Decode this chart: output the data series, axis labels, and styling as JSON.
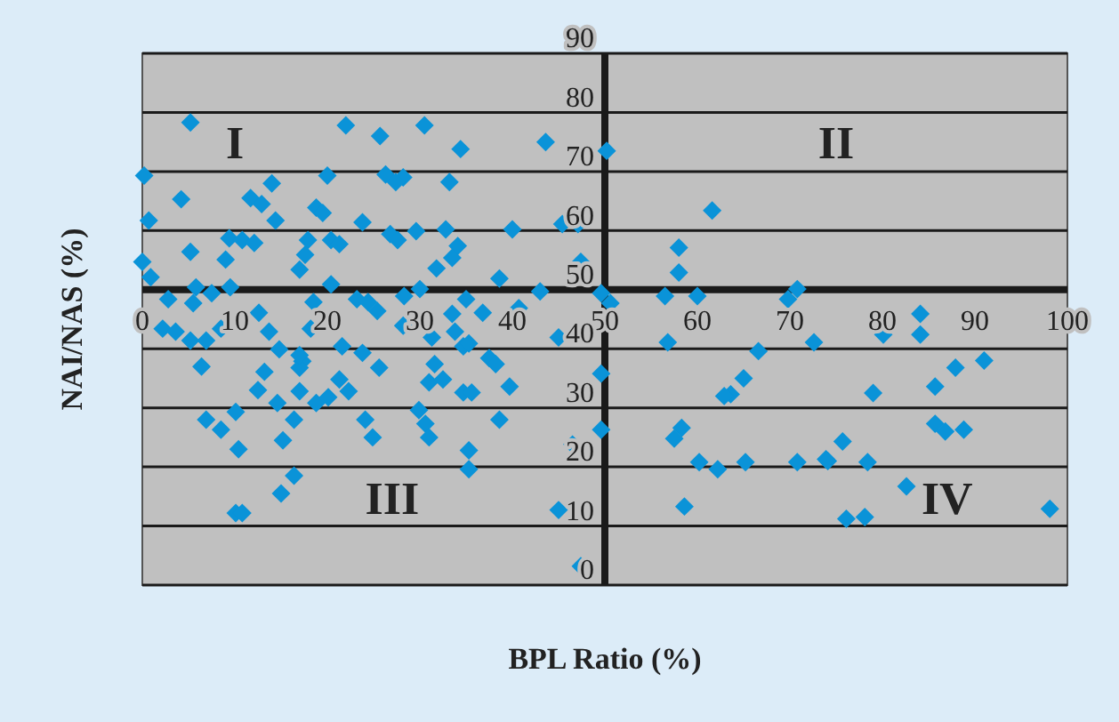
{
  "chart_data": {
    "type": "scatter",
    "xlabel": "BPL Ratio (%)",
    "ylabel": "NAI/NAS (%)",
    "annotations": [
      "I",
      "II",
      "III",
      "IV"
    ],
    "xlim": [
      0,
      100
    ],
    "ylim": [
      0,
      90
    ],
    "xticks": [
      0,
      10,
      20,
      30,
      40,
      50,
      60,
      70,
      80,
      90,
      100
    ],
    "yticks": [
      0,
      10,
      20,
      30,
      40,
      50,
      60,
      70,
      80,
      90
    ],
    "grid": "y",
    "marker": "diamond",
    "series": [
      {
        "color": "#0a93d8",
        "x": [
          5.2,
          22.0,
          0.2,
          20,
          4.2,
          11.7,
          12.9,
          14,
          0.7,
          14.4,
          18.8,
          19.5,
          23.8,
          5.2,
          9.4,
          10.8,
          12.1,
          9,
          17.9,
          20.4,
          21.3,
          17.6,
          17,
          0,
          0.9,
          20.4,
          2.8,
          5.5,
          5.8,
          7.5,
          9.5,
          18.5,
          12.6,
          2.2,
          3.6,
          5.2,
          6.9,
          8.5,
          13.7,
          6.4,
          14.8,
          18.2,
          17.3,
          17,
          13.2,
          12.5,
          14.6,
          17,
          16.4,
          6.9,
          8.5,
          10.1,
          10.4,
          15.2,
          16.4,
          15,
          10.1,
          10.8,
          18.8,
          20.1,
          21.3,
          22.3,
          21.6,
          17,
          23.2,
          25.7,
          30.5,
          34.4,
          43.6,
          50.2,
          26.3,
          28.2,
          27.4,
          33.2,
          26.8,
          27.6,
          29.6,
          32.8,
          40,
          45.4,
          47.1,
          34.1,
          33.5,
          31.8,
          47.4,
          38.6,
          30,
          28.3,
          35,
          43,
          24.4,
          25.4,
          28.2,
          33.5,
          36.8,
          40.7,
          33.8,
          31.3,
          34.7,
          35.3,
          37.5,
          38.2,
          45,
          23.8,
          25.6,
          31.6,
          31,
          32.5,
          39.7,
          34.7,
          35.6,
          29.9,
          30.6,
          31,
          24.1,
          24.9,
          38.6,
          35.3,
          35.3,
          46.5,
          45,
          47.4,
          49.6,
          49.6,
          49.6,
          61.6,
          58,
          58,
          50.6,
          56.5,
          60,
          69.8,
          70.8,
          56.8,
          72.6,
          66.6,
          65,
          63.6,
          62.9,
          58.3,
          57.5,
          60.2,
          62.2,
          65.2,
          70.8,
          73.9,
          58.6,
          84.1,
          84.1,
          80.1,
          91,
          87.9,
          79,
          85.7,
          85.7,
          86.8,
          88.8,
          75.7,
          74.1,
          78.4,
          82.6,
          76.1,
          78.1,
          98.1
        ],
        "values": [
          78.3,
          77.8,
          69.3,
          69.3,
          65.3,
          65.5,
          64.5,
          68,
          61.7,
          61.7,
          63.9,
          63,
          61.4,
          56.4,
          58.7,
          58.4,
          57.9,
          55.1,
          58.4,
          58.4,
          57.7,
          55.9,
          53.4,
          54.7,
          52.1,
          50.9,
          48.4,
          47.7,
          50.4,
          49.4,
          50.4,
          47.9,
          46.1,
          43.4,
          42.9,
          41.4,
          41.4,
          43.4,
          42.9,
          37,
          39.9,
          43.4,
          37.9,
          36.8,
          36.1,
          33,
          30.8,
          32.8,
          28,
          28,
          26.3,
          29.3,
          23,
          24.5,
          18.5,
          15.5,
          12.2,
          12.2,
          30.8,
          31.8,
          34.8,
          32.8,
          40.4,
          38.9,
          48.4,
          76,
          77.8,
          73.8,
          75,
          73.5,
          69.5,
          69,
          68.2,
          68.2,
          59.4,
          58.4,
          59.9,
          60.2,
          60.2,
          61.1,
          61.1,
          57.4,
          55.4,
          53.6,
          54.7,
          51.9,
          50.1,
          48.9,
          48.4,
          49.7,
          47.9,
          46.4,
          43.9,
          45.9,
          46.1,
          46.9,
          42.9,
          41.9,
          40.4,
          40.9,
          38.4,
          37.4,
          41.9,
          39.3,
          36.8,
          37.4,
          34.3,
          34.8,
          33.6,
          32.6,
          32.6,
          29.6,
          27.3,
          25,
          28,
          25,
          28,
          22.8,
          19.6,
          23.8,
          12.7,
          3.2,
          35.8,
          26.3,
          49.4,
          63.4,
          57.1,
          52.9,
          47.7,
          48.9,
          48.9,
          48.4,
          50.1,
          41.1,
          41.1,
          39.6,
          35,
          32.3,
          32,
          26.6,
          24.8,
          20.8,
          19.6,
          20.8,
          20.8,
          21.3,
          13.3,
          45.9,
          42.4,
          42.4,
          38,
          36.8,
          32.5,
          33.6,
          27.3,
          26,
          26.3,
          24.3,
          21,
          20.8,
          16.7,
          11.2,
          11.5,
          12.9
        ]
      }
    ]
  }
}
